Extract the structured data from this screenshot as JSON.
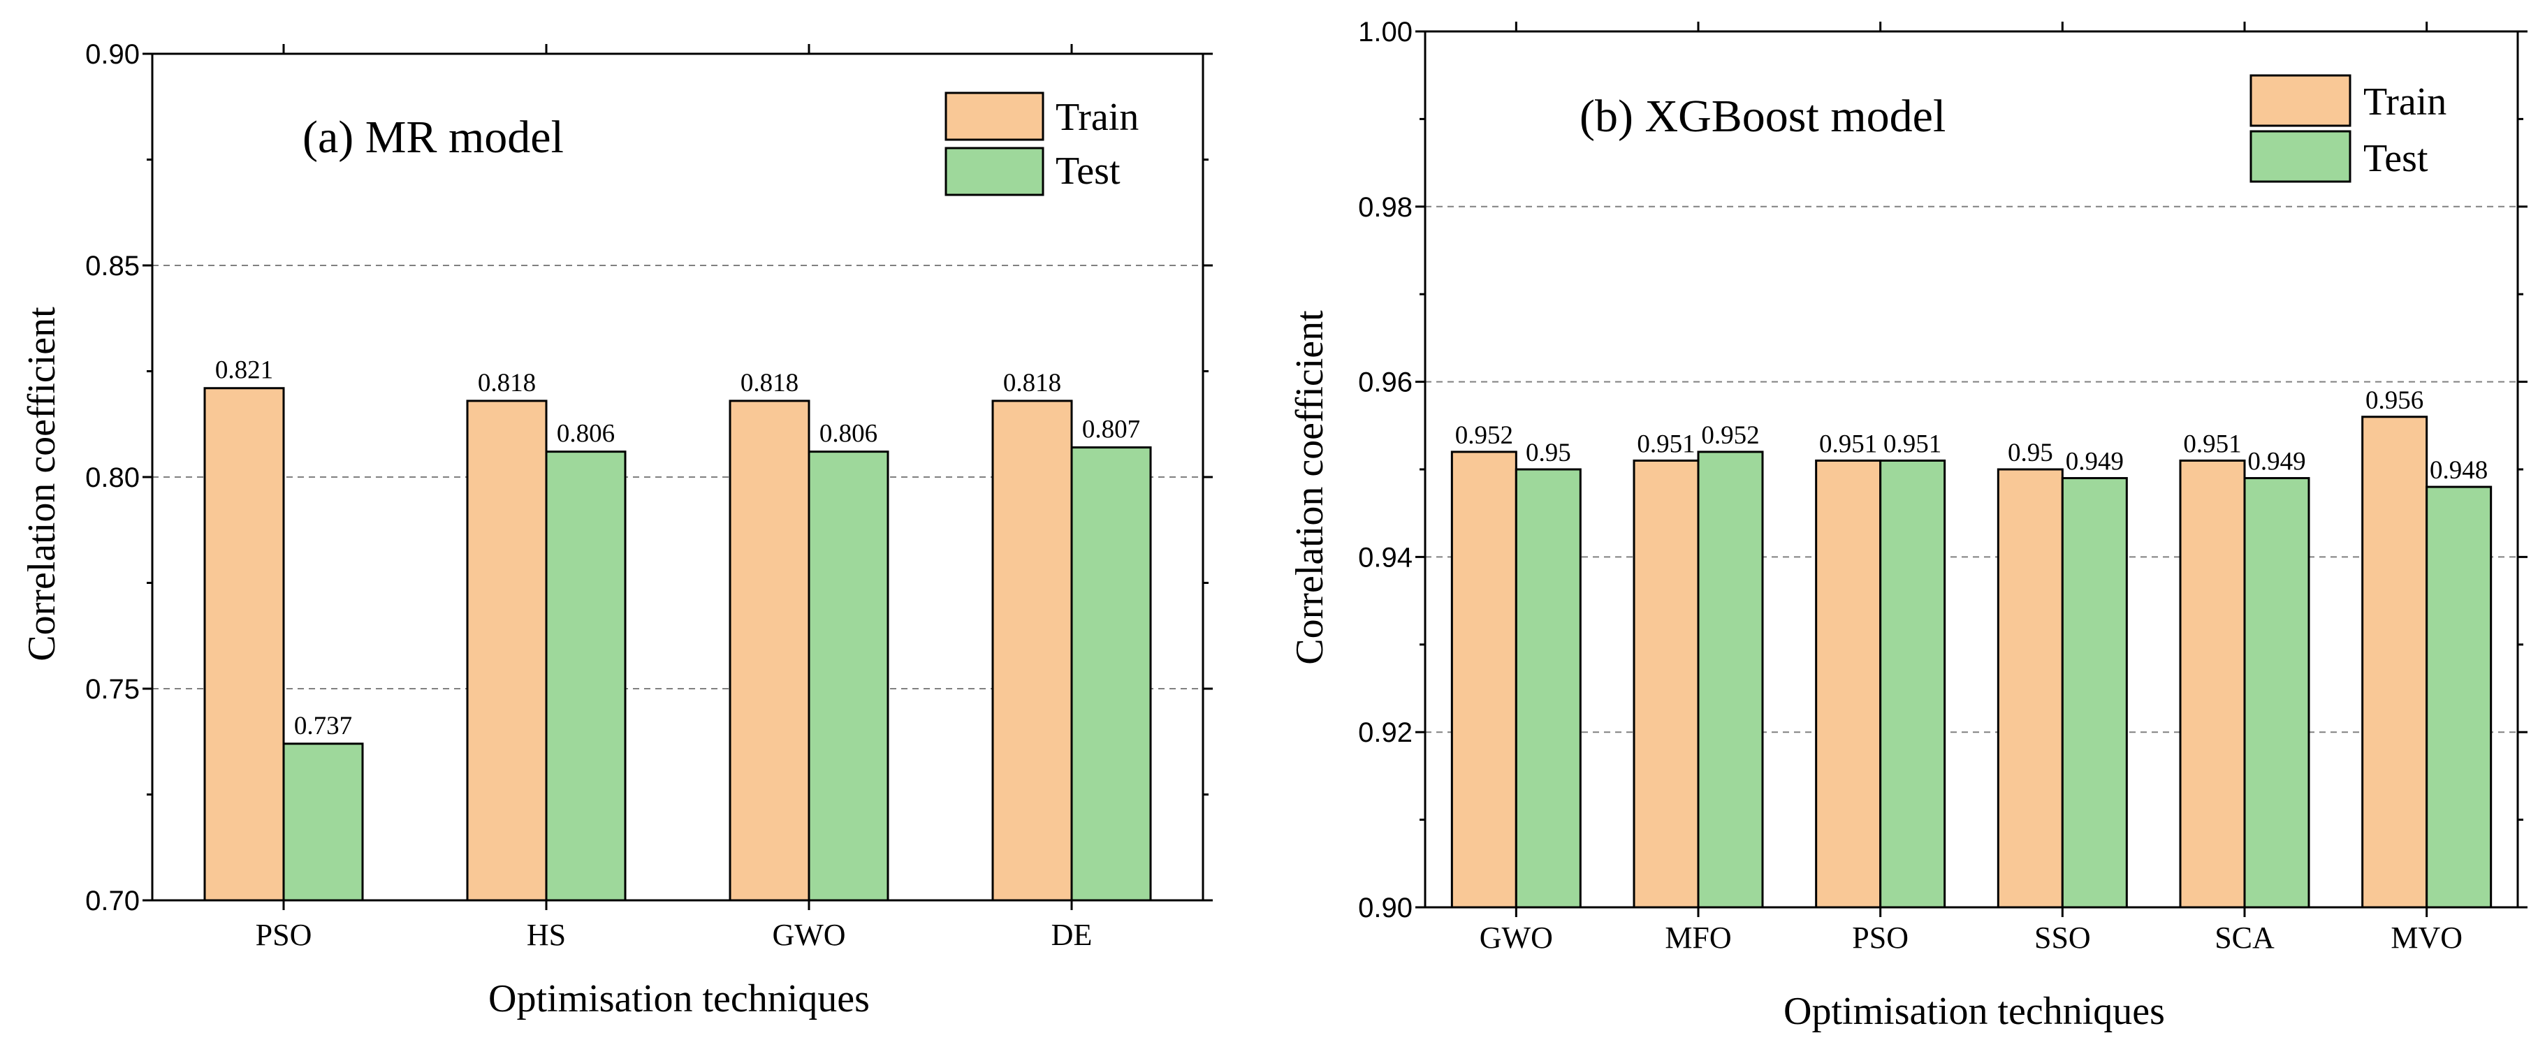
{
  "figure": {
    "colors": {
      "train": "#F9C896",
      "test": "#9ED89B",
      "grid": "#808080",
      "axis": "#000000"
    }
  },
  "chart_data": [
    {
      "type": "bar",
      "title": "(a) MR model",
      "xlabel": "Optimisation techniques",
      "ylabel": "Correlation coefficient",
      "ylim": [
        0.7,
        0.9
      ],
      "yticks": [
        "0.70",
        "0.75",
        "0.80",
        "0.85",
        "0.90"
      ],
      "categories": [
        "PSO",
        "HS",
        "GWO",
        "DE"
      ],
      "series": [
        {
          "name": "Train",
          "values": [
            0.821,
            0.818,
            0.818,
            0.818
          ],
          "labels": [
            "0.821",
            "0.818",
            "0.818",
            "0.818"
          ]
        },
        {
          "name": "Test",
          "values": [
            0.737,
            0.806,
            0.806,
            0.807
          ],
          "labels": [
            "0.737",
            "0.806",
            "0.806",
            "0.807"
          ]
        }
      ],
      "grid": true,
      "legend_position": "top-right"
    },
    {
      "type": "bar",
      "title": "(b) XGBoost model",
      "xlabel": "Optimisation techniques",
      "ylabel": "Correlation coefficient",
      "ylim": [
        0.9,
        1.0
      ],
      "yticks": [
        "0.90",
        "0.92",
        "0.94",
        "0.96",
        "0.98",
        "1.00"
      ],
      "categories": [
        "GWO",
        "MFO",
        "PSO",
        "SSO",
        "SCA",
        "MVO"
      ],
      "series": [
        {
          "name": "Train",
          "values": [
            0.952,
            0.951,
            0.951,
            0.95,
            0.951,
            0.956
          ],
          "labels": [
            "0.952",
            "0.951",
            "0.951",
            "0.95",
            "0.951",
            "0.956"
          ]
        },
        {
          "name": "Test",
          "values": [
            0.95,
            0.952,
            0.951,
            0.949,
            0.949,
            0.948
          ],
          "labels": [
            "0.95",
            "0.952",
            "0.951",
            "0.949",
            "0.949",
            "0.948"
          ]
        }
      ],
      "grid": true,
      "legend_position": "top-right"
    }
  ]
}
